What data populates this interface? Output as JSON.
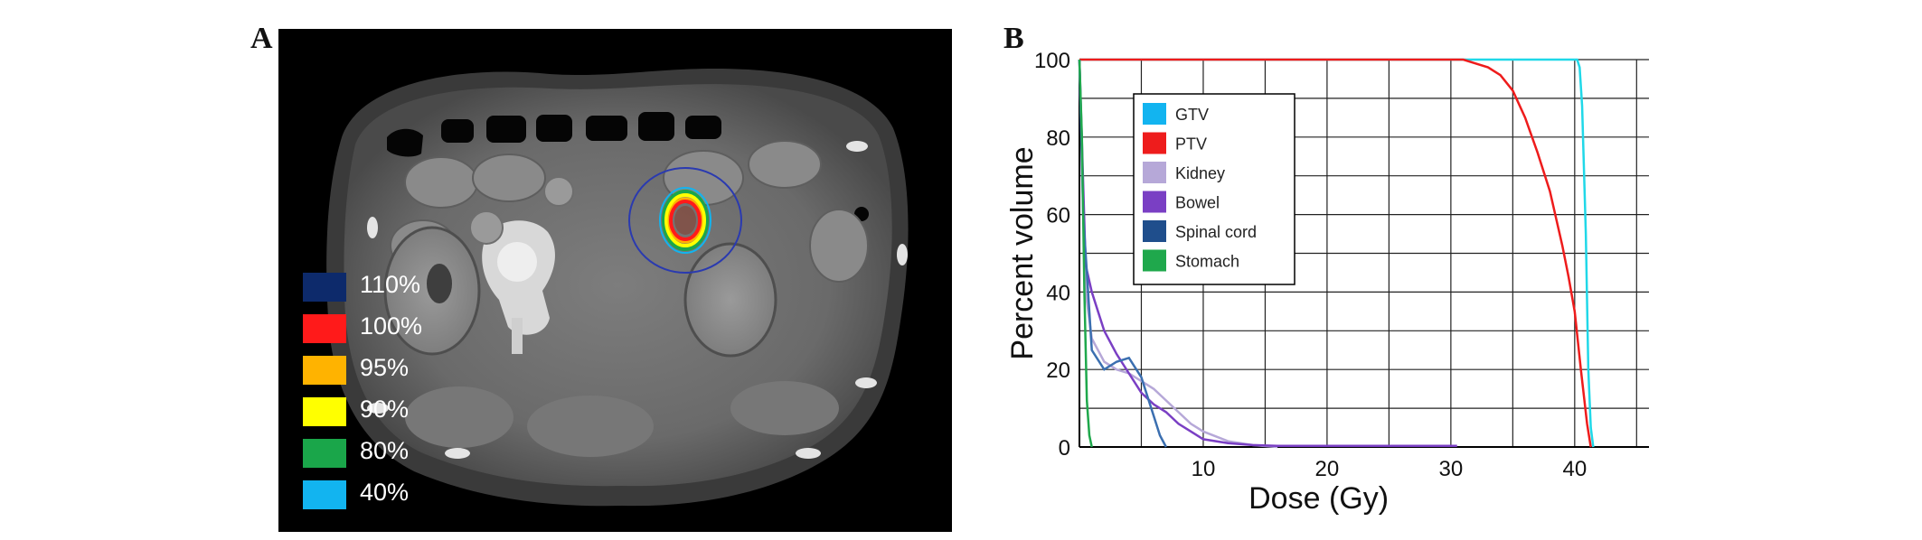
{
  "panel_a": {
    "letter": "A",
    "isodose_legend": [
      {
        "label": "110%",
        "color": "#0d2a6b"
      },
      {
        "label": "100%",
        "color": "#ff1a1a"
      },
      {
        "label": "95%",
        "color": "#ffb300"
      },
      {
        "label": "90%",
        "color": "#ffff00"
      },
      {
        "label": "80%",
        "color": "#1aa64a"
      },
      {
        "label": "40%",
        "color": "#12b4f0"
      }
    ]
  },
  "panel_b": {
    "letter": "B"
  },
  "chart_data": {
    "type": "line",
    "xlabel": "Dose (Gy)",
    "ylabel": "Percent volume",
    "xlim": [
      0,
      46
    ],
    "ylim": [
      0,
      100
    ],
    "x_ticks": [
      10,
      20,
      30,
      40
    ],
    "y_ticks": [
      0,
      20,
      40,
      60,
      80,
      100
    ],
    "grid": true,
    "legend_position": "upper-left",
    "series": [
      {
        "name": "GTV",
        "color": "#12b4f0",
        "line_color": "#20d8e8",
        "x": [
          0,
          40.2,
          40.4,
          40.6,
          40.9,
          41.1,
          41.3,
          41.5
        ],
        "y": [
          100,
          100,
          98,
          88,
          55,
          20,
          5,
          0
        ]
      },
      {
        "name": "PTV",
        "color": "#ee1c1c",
        "line_color": "#ee1c1c",
        "x": [
          0,
          31,
          32,
          33,
          34,
          35,
          36,
          37,
          38,
          39,
          39.5,
          40,
          40.5,
          41,
          41.3
        ],
        "y": [
          100,
          100,
          99,
          98,
          96,
          92,
          85,
          76,
          66,
          52,
          44,
          35,
          20,
          6,
          0
        ]
      },
      {
        "name": "Kidney",
        "color": "#b6a8d8",
        "line_color": "#b6a8d8",
        "x": [
          0,
          0.5,
          1,
          2,
          3,
          4,
          5,
          6,
          7,
          8,
          9,
          10,
          12,
          14,
          16
        ],
        "y": [
          100,
          40,
          28,
          22,
          20,
          19,
          17,
          15,
          12,
          9,
          6,
          4,
          1.5,
          0.5,
          0
        ]
      },
      {
        "name": "Bowel",
        "color": "#7a3fc4",
        "line_color": "#7a3fc4",
        "x": [
          0,
          0.5,
          1,
          1.5,
          2,
          3,
          4,
          5,
          6,
          7,
          8,
          9,
          10,
          12,
          14,
          16,
          20,
          25,
          30.5
        ],
        "y": [
          100,
          47,
          40,
          35,
          30,
          24,
          19,
          14,
          11,
          9,
          6,
          4,
          2,
          1,
          0.5,
          0.3,
          0.3,
          0.3,
          0.3
        ]
      },
      {
        "name": "Spinal cord",
        "color": "#1f4e8c",
        "line_color": "#3b6fb0",
        "x": [
          0,
          0.3,
          1,
          2,
          3,
          4,
          5,
          6,
          6.5,
          7
        ],
        "y": [
          100,
          60,
          25,
          20,
          22,
          23,
          18,
          8,
          3,
          0
        ]
      },
      {
        "name": "Stomach",
        "color": "#1fa84c",
        "line_color": "#1fa84c",
        "x": [
          0,
          0.2,
          0.4,
          0.6,
          0.8,
          1.0
        ],
        "y": [
          100,
          80,
          40,
          12,
          3,
          0
        ]
      }
    ]
  }
}
